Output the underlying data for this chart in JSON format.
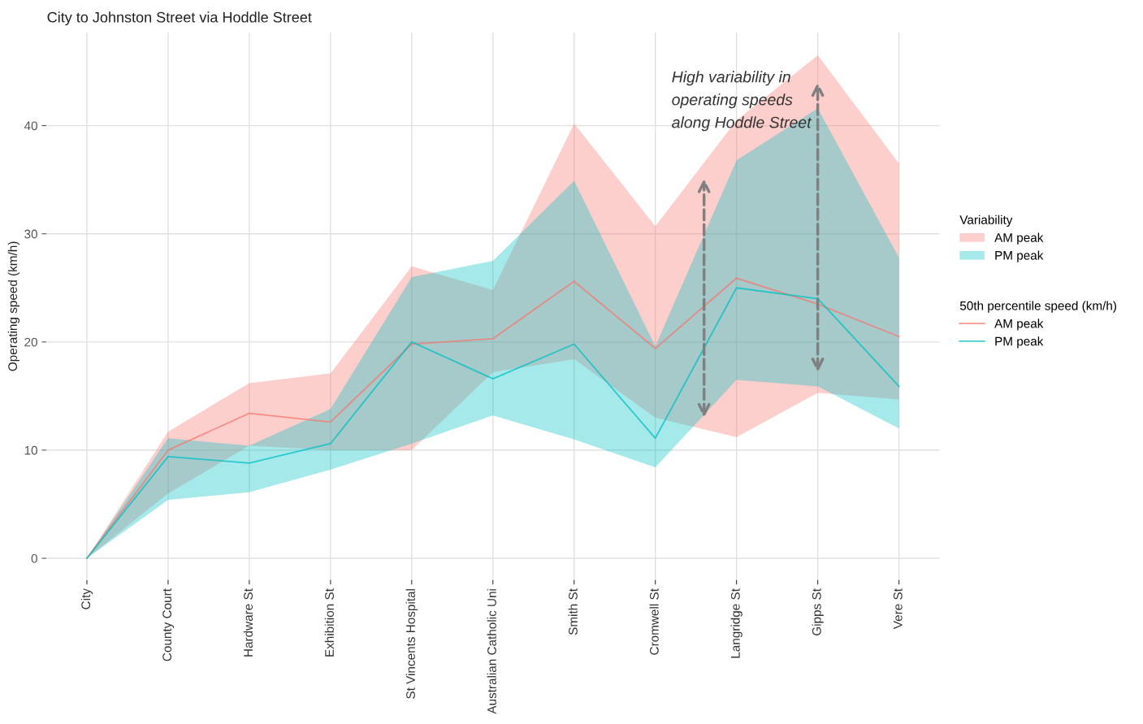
{
  "chart_data": {
    "type": "line",
    "title": "City to Johnston Street via Hoddle Street",
    "ylabel": "Operating speed (km/h)",
    "legend_title": [
      "Variability",
      "50th percentile speed (km/h)"
    ],
    "categories": [
      "City",
      "County Court",
      "Hardware St",
      "Exhibition St",
      "St Vincents Hospital",
      "Australian Catholic Uni",
      "Smith St",
      "Cromwell St",
      "Langridge St",
      "Gipps St",
      "Vere St"
    ],
    "ylim": [
      -2,
      48.6
    ],
    "yticks": [
      0,
      10,
      20,
      30,
      40
    ],
    "series": [
      {
        "name": "AM peak",
        "color": "#f8766d",
        "values": [
          0,
          10,
          13.4,
          12.6,
          19.8,
          20.3,
          25.6,
          19.4,
          25.9,
          23.5,
          20.5
        ],
        "lower": [
          0,
          6,
          10.4,
          10,
          10,
          17.2,
          18.4,
          13,
          11.2,
          15.3,
          14.7
        ],
        "upper": [
          0,
          11.7,
          16.2,
          17.1,
          27,
          24.8,
          40.2,
          30.7,
          40.5,
          46.5,
          36.5
        ]
      },
      {
        "name": "PM peak",
        "color": "#00bfc4",
        "values": [
          0,
          9.4,
          8.8,
          10.6,
          20,
          16.6,
          19.8,
          11.1,
          25,
          24,
          15.9
        ],
        "lower": [
          0,
          5.4,
          6.1,
          8.2,
          10.6,
          13.2,
          11,
          8.4,
          16.5,
          15.9,
          12
        ],
        "upper": [
          0,
          11.1,
          10.4,
          13.8,
          26,
          27.5,
          34.9,
          19.6,
          36.8,
          41.6,
          27.8
        ]
      }
    ],
    "annotations": [
      "High variability in\noperating speeds\nalong Hoddle Street"
    ],
    "grid": true,
    "legend": "right"
  }
}
